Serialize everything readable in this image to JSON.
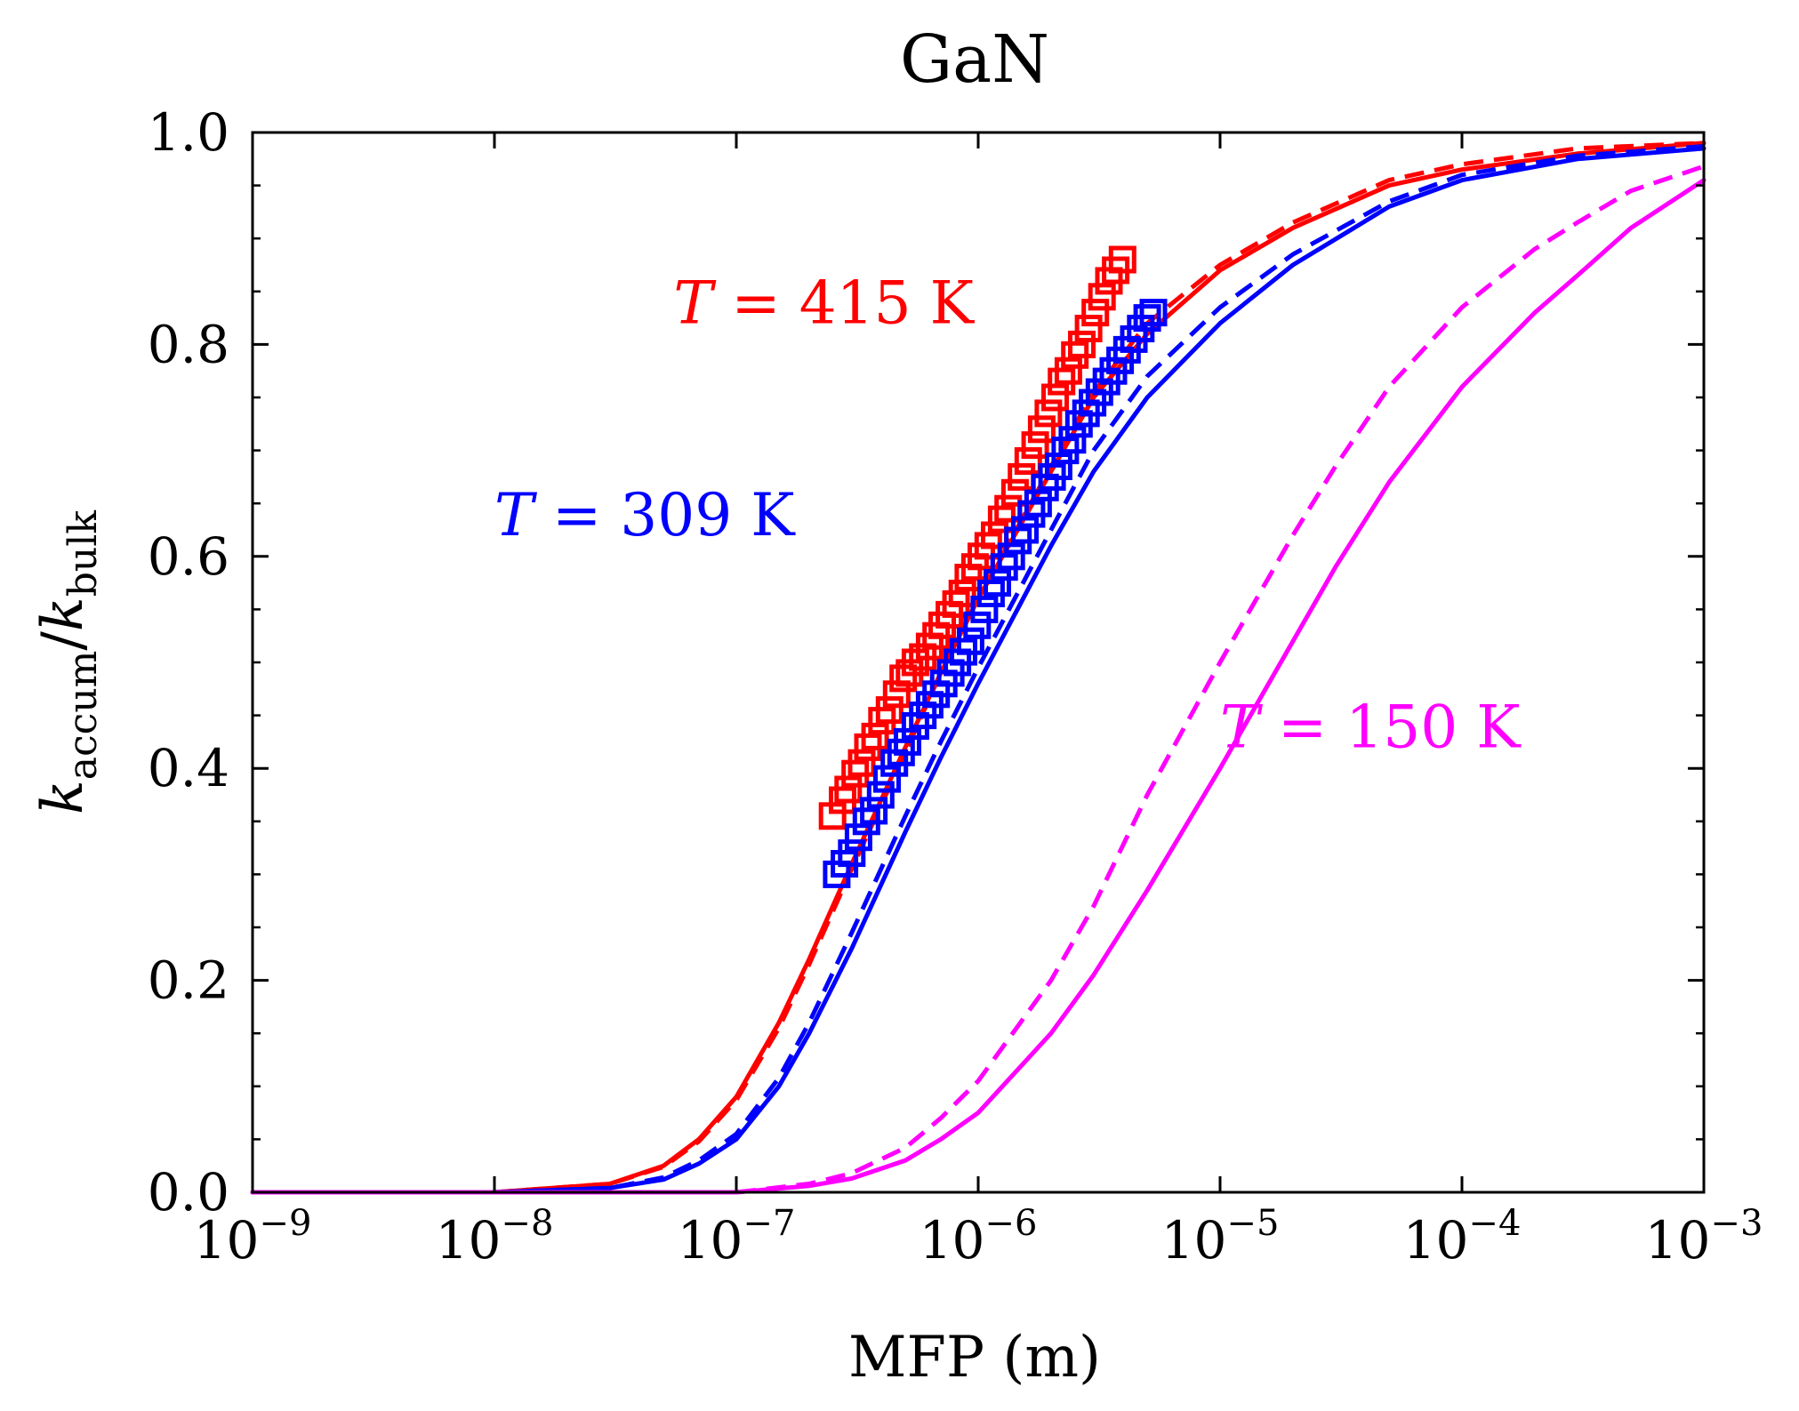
{
  "chart_data": {
    "type": "line",
    "title": "GaN",
    "xlabel": "MFP (m)",
    "ylabel": {
      "k1": "k",
      "sub1": "accum",
      "slash": "/",
      "k2": "k",
      "sub2": "bulk"
    },
    "xscale": "log",
    "xlim": [
      1e-09,
      0.001
    ],
    "ylim": [
      0.0,
      1.0
    ],
    "grid": false,
    "x_ticks": [
      {
        "value": 1e-09,
        "base": "10",
        "exp": "−9"
      },
      {
        "value": 1e-08,
        "base": "10",
        "exp": "−8"
      },
      {
        "value": 1e-07,
        "base": "10",
        "exp": "−7"
      },
      {
        "value": 1e-06,
        "base": "10",
        "exp": "−6"
      },
      {
        "value": 1e-05,
        "base": "10",
        "exp": "−5"
      },
      {
        "value": 0.0001,
        "base": "10",
        "exp": "−4"
      },
      {
        "value": 0.001,
        "base": "10",
        "exp": "−3"
      }
    ],
    "y_ticks": [
      {
        "value": 0.0,
        "label": "0.0"
      },
      {
        "value": 0.2,
        "label": "0.2"
      },
      {
        "value": 0.4,
        "label": "0.4"
      },
      {
        "value": 0.6,
        "label": "0.6"
      },
      {
        "value": 0.8,
        "label": "0.8"
      },
      {
        "value": 1.0,
        "label": "1.0"
      }
    ],
    "annotations": [
      {
        "series": "415K",
        "var": "T",
        "rest": " = 415 K",
        "x": 5.5e-08,
        "y": 0.82,
        "color": "#ff0000"
      },
      {
        "series": "309K",
        "var": "T",
        "rest": " = 309 K",
        "x": 1e-08,
        "y": 0.62,
        "color": "#0000ff"
      },
      {
        "series": "150K",
        "var": "T",
        "rest": " = 150 K",
        "x": 1e-05,
        "y": 0.42,
        "color": "#ff00ff"
      }
    ],
    "series": [
      {
        "key": "415K-solid",
        "color": "#ff0000",
        "style": "solid",
        "points": [
          [
            1e-09,
            0
          ],
          [
            1e-08,
            0.0
          ],
          [
            3e-08,
            0.008
          ],
          [
            5e-08,
            0.025
          ],
          [
            7e-08,
            0.05
          ],
          [
            1e-07,
            0.09
          ],
          [
            1.5e-07,
            0.16
          ],
          [
            2e-07,
            0.22
          ],
          [
            3e-07,
            0.31
          ],
          [
            5e-07,
            0.42
          ],
          [
            7e-07,
            0.49
          ],
          [
            1e-06,
            0.56
          ],
          [
            2e-06,
            0.68
          ],
          [
            3e-06,
            0.75
          ],
          [
            5e-06,
            0.81
          ],
          [
            1e-05,
            0.87
          ],
          [
            2e-05,
            0.91
          ],
          [
            5e-05,
            0.95
          ],
          [
            0.0001,
            0.965
          ],
          [
            0.0003,
            0.98
          ],
          [
            0.001,
            0.99
          ]
        ]
      },
      {
        "key": "415K-dashed",
        "color": "#ff0000",
        "style": "dashed",
        "points": [
          [
            1e-09,
            0
          ],
          [
            1e-08,
            0.0
          ],
          [
            3e-08,
            0.008
          ],
          [
            5e-08,
            0.024
          ],
          [
            7e-08,
            0.048
          ],
          [
            1e-07,
            0.087
          ],
          [
            1.5e-07,
            0.155
          ],
          [
            2e-07,
            0.215
          ],
          [
            3e-07,
            0.305
          ],
          [
            5e-07,
            0.415
          ],
          [
            7e-07,
            0.49
          ],
          [
            1e-06,
            0.56
          ],
          [
            2e-06,
            0.685
          ],
          [
            3e-06,
            0.755
          ],
          [
            5e-06,
            0.82
          ],
          [
            1e-05,
            0.875
          ],
          [
            2e-05,
            0.915
          ],
          [
            5e-05,
            0.955
          ],
          [
            0.0001,
            0.97
          ],
          [
            0.0003,
            0.985
          ],
          [
            0.001,
            0.99
          ]
        ]
      },
      {
        "key": "309K-solid",
        "color": "#0000ff",
        "style": "solid",
        "points": [
          [
            1e-09,
            0
          ],
          [
            1e-08,
            0.0
          ],
          [
            3e-08,
            0.004
          ],
          [
            5e-08,
            0.012
          ],
          [
            7e-08,
            0.027
          ],
          [
            1e-07,
            0.05
          ],
          [
            1.5e-07,
            0.1
          ],
          [
            2e-07,
            0.15
          ],
          [
            3e-07,
            0.23
          ],
          [
            5e-07,
            0.34
          ],
          [
            7e-07,
            0.41
          ],
          [
            1e-06,
            0.48
          ],
          [
            2e-06,
            0.61
          ],
          [
            3e-06,
            0.68
          ],
          [
            5e-06,
            0.75
          ],
          [
            1e-05,
            0.82
          ],
          [
            2e-05,
            0.875
          ],
          [
            5e-05,
            0.93
          ],
          [
            0.0001,
            0.955
          ],
          [
            0.0003,
            0.975
          ],
          [
            0.001,
            0.985
          ]
        ]
      },
      {
        "key": "309K-dashed",
        "color": "#0000ff",
        "style": "dashed",
        "points": [
          [
            1e-09,
            0
          ],
          [
            1e-08,
            0.0
          ],
          [
            3e-08,
            0.004
          ],
          [
            5e-08,
            0.014
          ],
          [
            7e-08,
            0.03
          ],
          [
            1e-07,
            0.055
          ],
          [
            1.5e-07,
            0.108
          ],
          [
            2e-07,
            0.16
          ],
          [
            3e-07,
            0.245
          ],
          [
            5e-07,
            0.355
          ],
          [
            7e-07,
            0.425
          ],
          [
            1e-06,
            0.495
          ],
          [
            2e-06,
            0.625
          ],
          [
            3e-06,
            0.7
          ],
          [
            5e-06,
            0.77
          ],
          [
            1e-05,
            0.835
          ],
          [
            2e-05,
            0.885
          ],
          [
            5e-05,
            0.935
          ],
          [
            0.0001,
            0.96
          ],
          [
            0.0003,
            0.978
          ],
          [
            0.001,
            0.987
          ]
        ]
      },
      {
        "key": "150K-solid",
        "color": "#ff00ff",
        "style": "solid",
        "points": [
          [
            1e-09,
            0
          ],
          [
            1e-07,
            0.0
          ],
          [
            2e-07,
            0.006
          ],
          [
            3e-07,
            0.013
          ],
          [
            5e-07,
            0.03
          ],
          [
            7e-07,
            0.05
          ],
          [
            1e-06,
            0.075
          ],
          [
            2e-06,
            0.15
          ],
          [
            3e-06,
            0.205
          ],
          [
            5e-06,
            0.285
          ],
          [
            1e-05,
            0.4
          ],
          [
            2e-05,
            0.52
          ],
          [
            3e-05,
            0.59
          ],
          [
            5e-05,
            0.67
          ],
          [
            0.0001,
            0.76
          ],
          [
            0.0002,
            0.83
          ],
          [
            0.0003,
            0.865
          ],
          [
            0.0005,
            0.91
          ],
          [
            0.001,
            0.955
          ]
        ]
      },
      {
        "key": "150K-dashed",
        "color": "#ff00ff",
        "style": "dashed",
        "points": [
          [
            1e-09,
            0
          ],
          [
            1e-07,
            0.0
          ],
          [
            2e-07,
            0.008
          ],
          [
            3e-07,
            0.018
          ],
          [
            5e-07,
            0.042
          ],
          [
            7e-07,
            0.07
          ],
          [
            1e-06,
            0.105
          ],
          [
            2e-06,
            0.2
          ],
          [
            3e-06,
            0.27
          ],
          [
            5e-06,
            0.375
          ],
          [
            1e-05,
            0.5
          ],
          [
            2e-05,
            0.62
          ],
          [
            3e-05,
            0.685
          ],
          [
            5e-05,
            0.76
          ],
          [
            0.0001,
            0.835
          ],
          [
            0.0002,
            0.89
          ],
          [
            0.0003,
            0.915
          ],
          [
            0.0005,
            0.945
          ],
          [
            0.001,
            0.968
          ]
        ]
      }
    ],
    "markers": [
      {
        "key": "415K-squares",
        "color": "#ff0000",
        "shape": "square",
        "points": [
          [
            2.5e-07,
            0.355
          ],
          [
            2.75e-07,
            0.37
          ],
          [
            2.9e-07,
            0.38
          ],
          [
            3.1e-07,
            0.395
          ],
          [
            3.3e-07,
            0.405
          ],
          [
            3.5e-07,
            0.42
          ],
          [
            3.75e-07,
            0.43
          ],
          [
            4e-07,
            0.445
          ],
          [
            4.3e-07,
            0.455
          ],
          [
            4.6e-07,
            0.47
          ],
          [
            4.9e-07,
            0.485
          ],
          [
            5.2e-07,
            0.49
          ],
          [
            5.5e-07,
            0.5
          ],
          [
            5.9e-07,
            0.505
          ],
          [
            6.3e-07,
            0.515
          ],
          [
            6.7e-07,
            0.525
          ],
          [
            7.1e-07,
            0.535
          ],
          [
            7.6e-07,
            0.545
          ],
          [
            8.1e-07,
            0.555
          ],
          [
            8.6e-07,
            0.565
          ],
          [
            9.1e-07,
            0.58
          ],
          [
            9.7e-07,
            0.59
          ],
          [
            1.03e-06,
            0.6
          ],
          [
            1.1e-06,
            0.61
          ],
          [
            1.17e-06,
            0.62
          ],
          [
            1.25e-06,
            0.635
          ],
          [
            1.33e-06,
            0.645
          ],
          [
            1.42e-06,
            0.66
          ],
          [
            1.51e-06,
            0.675
          ],
          [
            1.61e-06,
            0.69
          ],
          [
            1.72e-06,
            0.705
          ],
          [
            1.83e-06,
            0.72
          ],
          [
            1.95e-06,
            0.735
          ],
          [
            2.08e-06,
            0.75
          ],
          [
            2.21e-06,
            0.765
          ],
          [
            2.36e-06,
            0.775
          ],
          [
            2.51e-06,
            0.79
          ],
          [
            2.68e-06,
            0.8
          ],
          [
            2.86e-06,
            0.815
          ],
          [
            3.05e-06,
            0.83
          ],
          [
            3.25e-06,
            0.845
          ],
          [
            3.47e-06,
            0.86
          ],
          [
            3.7e-06,
            0.87
          ],
          [
            3.95e-06,
            0.88
          ]
        ]
      },
      {
        "key": "309K-squares",
        "color": "#0000ff",
        "shape": "square",
        "points": [
          [
            2.6e-07,
            0.3
          ],
          [
            2.8e-07,
            0.31
          ],
          [
            3e-07,
            0.32
          ],
          [
            3.2e-07,
            0.335
          ],
          [
            3.45e-07,
            0.35
          ],
          [
            3.7e-07,
            0.36
          ],
          [
            3.95e-07,
            0.375
          ],
          [
            4.2e-07,
            0.39
          ],
          [
            4.5e-07,
            0.405
          ],
          [
            4.8e-07,
            0.415
          ],
          [
            5.1e-07,
            0.425
          ],
          [
            5.5e-07,
            0.44
          ],
          [
            5.9e-07,
            0.45
          ],
          [
            6.3e-07,
            0.46
          ],
          [
            6.7e-07,
            0.47
          ],
          [
            7.2e-07,
            0.48
          ],
          [
            7.7e-07,
            0.49
          ],
          [
            8.2e-07,
            0.5
          ],
          [
            8.7e-07,
            0.51
          ],
          [
            9.3e-07,
            0.52
          ],
          [
            9.9e-07,
            0.535
          ],
          [
            1.06e-06,
            0.55
          ],
          [
            1.13e-06,
            0.565
          ],
          [
            1.2e-06,
            0.575
          ],
          [
            1.28e-06,
            0.59
          ],
          [
            1.37e-06,
            0.6
          ],
          [
            1.46e-06,
            0.615
          ],
          [
            1.56e-06,
            0.625
          ],
          [
            1.66e-06,
            0.64
          ],
          [
            1.77e-06,
            0.65
          ],
          [
            1.89e-06,
            0.665
          ],
          [
            2.02e-06,
            0.675
          ],
          [
            2.15e-06,
            0.685
          ],
          [
            2.29e-06,
            0.7
          ],
          [
            2.45e-06,
            0.71
          ],
          [
            2.61e-06,
            0.725
          ],
          [
            2.79e-06,
            0.735
          ],
          [
            2.97e-06,
            0.745
          ],
          [
            3.17e-06,
            0.755
          ],
          [
            3.39e-06,
            0.765
          ],
          [
            3.62e-06,
            0.775
          ],
          [
            3.86e-06,
            0.785
          ],
          [
            4.12e-06,
            0.795
          ],
          [
            4.4e-06,
            0.805
          ],
          [
            4.7e-06,
            0.815
          ],
          [
            5e-06,
            0.825
          ],
          [
            5.3e-06,
            0.83
          ]
        ]
      }
    ]
  }
}
